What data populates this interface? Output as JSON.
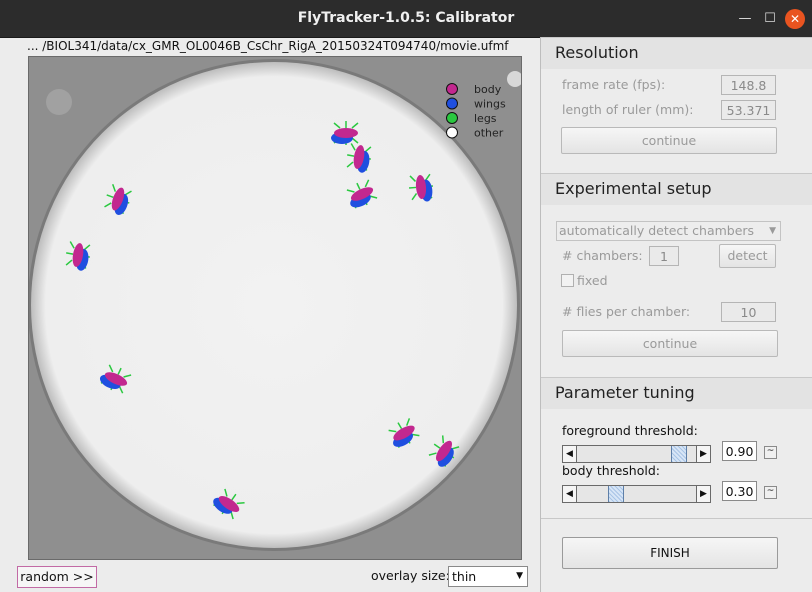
{
  "window": {
    "title": "FlyTracker-1.0.5: Calibrator",
    "close_glyph": "✕",
    "min_glyph": "—",
    "max_glyph": "☐"
  },
  "viewer": {
    "file_path": "... /BIOL341/data/cx_GMR_OL0046B_CsChr_RigA_20150324T094740/movie.ufmf",
    "legend": [
      {
        "label": "body",
        "color": "#c2288f"
      },
      {
        "label": "wings",
        "color": "#1f4fe0"
      },
      {
        "label": "legs",
        "color": "#2bc840"
      },
      {
        "label": "other",
        "color": "#ffffff"
      }
    ]
  },
  "resolution": {
    "header": "Resolution",
    "frame_rate_label": "frame rate (fps):",
    "frame_rate_value": "148.8",
    "ruler_label": "length of ruler (mm):",
    "ruler_value": "53.371",
    "continue_label": "continue"
  },
  "experimental": {
    "header": "Experimental setup",
    "chamber_mode": "automatically detect chambers",
    "chambers_label": "# chambers:",
    "chambers_value": "1",
    "detect_label": "detect",
    "fixed_label": "fixed",
    "flies_label": "# flies per chamber:",
    "flies_value": "10",
    "continue_label": "continue"
  },
  "tuning": {
    "header": "Parameter tuning",
    "fg_label": "foreground threshold:",
    "fg_value": "0.90",
    "fg_fraction": 0.9,
    "body_label": "body threshold:",
    "body_value": "0.30",
    "body_fraction": 0.3,
    "left_arrow": "◀",
    "right_arrow": "▶",
    "tilde": "~"
  },
  "finish_label": "FINISH",
  "random_label": "random >>",
  "overlay": {
    "label": "overlay size:",
    "value": "thin"
  }
}
